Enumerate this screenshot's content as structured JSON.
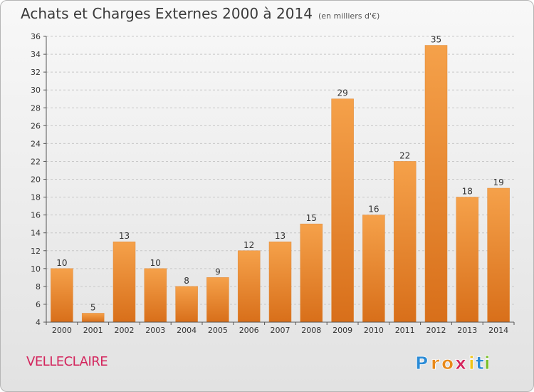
{
  "title": "Achats et Charges Externes 2000 à 2014",
  "subtitle": "(en milliers d'€)",
  "commune": "VELLECLAIRE",
  "logo": {
    "letters": [
      "P",
      "r",
      "o",
      "x",
      "i",
      "t",
      "i"
    ],
    "colors": [
      "#2a8bd6",
      "#e8891a",
      "#e8891a",
      "#d3245c",
      "#f0c419",
      "#2a8bd6",
      "#7bbf2b"
    ]
  },
  "colors": {
    "bar_light": "#f5a14a",
    "bar_dark": "#d86f1a",
    "axis": "#555555",
    "grid": "#c8c8c8",
    "commune": "#d3245c"
  },
  "chart_data": {
    "type": "bar",
    "categories": [
      "2000",
      "2001",
      "2002",
      "2003",
      "2004",
      "2005",
      "2006",
      "2007",
      "2008",
      "2009",
      "2010",
      "2011",
      "2012",
      "2013",
      "2014"
    ],
    "values": [
      10,
      5,
      13,
      10,
      8,
      9,
      12,
      13,
      15,
      29,
      16,
      22,
      35,
      18,
      19
    ],
    "ylim": [
      4,
      36
    ],
    "yticks": [
      4,
      6,
      8,
      10,
      12,
      14,
      16,
      18,
      20,
      22,
      24,
      26,
      28,
      30,
      32,
      34,
      36
    ],
    "data_labels": true,
    "grid": "dashed-horizontal",
    "legend": "none"
  }
}
